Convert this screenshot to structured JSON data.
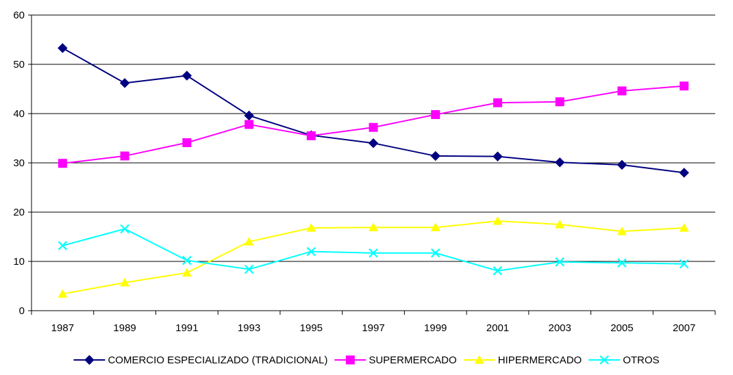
{
  "chart_data": {
    "type": "line",
    "categories": [
      "1987",
      "1989",
      "1991",
      "1993",
      "1995",
      "1997",
      "1999",
      "2001",
      "2003",
      "2005",
      "2007"
    ],
    "ylim": [
      0,
      60
    ],
    "yticks": [
      0,
      10,
      20,
      30,
      40,
      50,
      60
    ],
    "grid": "horizontal",
    "legend_position": "bottom",
    "series": [
      {
        "name": "COMERCIO ESPECIALIZADO (TRADICIONAL)",
        "color": "#000080",
        "marker": "diamond",
        "values": [
          53.3,
          46.2,
          47.7,
          39.6,
          35.6,
          34.0,
          31.4,
          31.3,
          30.1,
          29.6,
          28.0
        ]
      },
      {
        "name": "SUPERMERCADO",
        "color": "#FF00FF",
        "marker": "square",
        "values": [
          29.9,
          31.4,
          34.1,
          37.8,
          35.5,
          37.2,
          39.8,
          42.2,
          42.4,
          44.6,
          45.6
        ]
      },
      {
        "name": "HIPERMERCADO",
        "color": "#FFFF00",
        "marker": "triangle",
        "values": [
          3.4,
          5.7,
          7.7,
          14.0,
          16.8,
          16.9,
          16.9,
          18.2,
          17.5,
          16.1,
          16.8
        ]
      },
      {
        "name": "OTROS",
        "color": "#00FFFF",
        "marker": "x",
        "values": [
          13.2,
          16.6,
          10.2,
          8.4,
          12.0,
          11.7,
          11.7,
          8.1,
          9.9,
          9.7,
          9.5
        ]
      }
    ]
  }
}
